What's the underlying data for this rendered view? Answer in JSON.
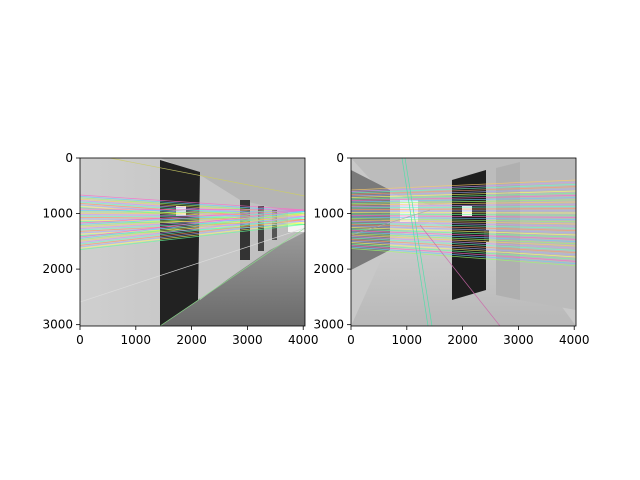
{
  "figure": {
    "panels": [
      {
        "id": "left",
        "image_description_icon": "grayscale-corridor-photo-left-icon",
        "x_ticks": [
          "0",
          "1000",
          "2000",
          "3000",
          "4000"
        ],
        "y_ticks": [
          "0",
          "1000",
          "2000",
          "3000"
        ]
      },
      {
        "id": "right",
        "image_description_icon": "grayscale-corridor-photo-right-icon",
        "x_ticks": [
          "0",
          "1000",
          "2000",
          "3000",
          "4000"
        ],
        "y_ticks": [
          "0",
          "1000",
          "2000",
          "3000"
        ]
      }
    ],
    "line_colors": [
      "#ff66cc",
      "#66ccff",
      "#99ff66",
      "#ffcc66",
      "#cc99ff",
      "#66ffcc",
      "#ff9966",
      "#aaaaff",
      "#ffff66",
      "#66ff99"
    ]
  }
}
